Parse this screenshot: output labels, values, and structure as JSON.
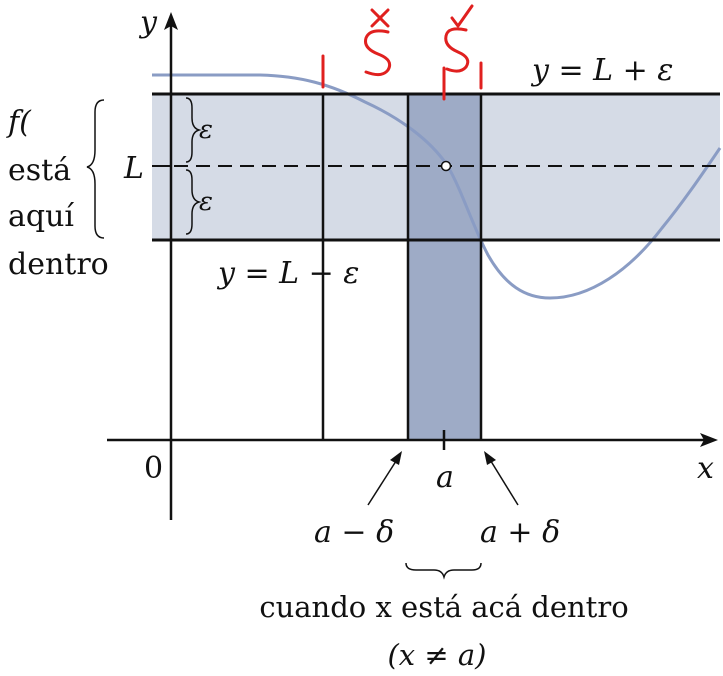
{
  "figure": {
    "axis": {
      "x_label": "x",
      "y_label": "y",
      "origin": "0"
    },
    "values": {
      "L": "L",
      "a": "a"
    },
    "lines": {
      "upper": "y = L + ε",
      "lower": "y = L − ε"
    },
    "epsilon_upper": "ε",
    "epsilon_lower": "ε",
    "left_note": [
      "f(",
      "está",
      "aquí",
      "dentro"
    ],
    "delta_left": "a − δ",
    "delta_right": "a + δ",
    "caption_line1": "cuando x está acá dentro",
    "caption_line2": "(x ≠ a)",
    "handwriting": {
      "left": "δx",
      "right": "δ✓"
    },
    "colors": {
      "band": "#d5dbe6",
      "strip": "#9eabc6",
      "curve": "#8a9cc4",
      "handwriting": "#e0201f"
    }
  }
}
